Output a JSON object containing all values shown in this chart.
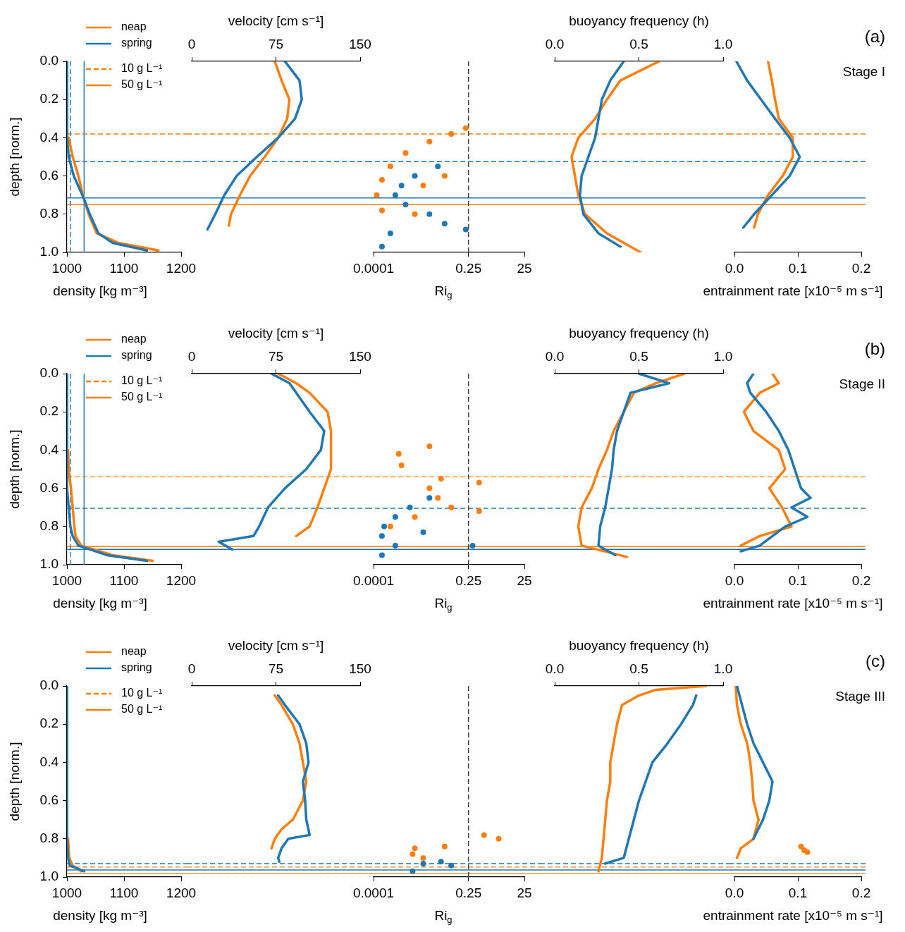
{
  "chart_data": [
    {
      "type": "line",
      "orientation": "horizontal",
      "xlabel": "density [kg m⁻³]",
      "ylabel": "depth [norm.]",
      "xlim": [
        1000,
        1200
      ],
      "xticks": [
        1000,
        1100,
        1200
      ],
      "ylim": [
        1,
        0
      ],
      "yticks": [
        {
          "value": 0,
          "label": "0.0"
        },
        {
          "value": 0.2,
          "label": "0.2"
        },
        {
          "value": 0.4,
          "label": "0.4"
        },
        {
          "value": 0.6,
          "label": "0.6"
        },
        {
          "value": 0.8,
          "label": "0.8"
        },
        {
          "value": 1,
          "label": "1.0"
        }
      ],
      "legend": "top right",
      "series": [
        {
          "name": "neap",
          "color": "#ff7f0e",
          "x": [
            0.4,
            0.5,
            0.6,
            0.7,
            0.8,
            0.9,
            0.95,
            0.99
          ],
          "values": [
            1003,
            1010,
            1020,
            1028,
            1038,
            1052,
            1090,
            1160
          ]
        },
        {
          "name": "spring",
          "color": "#1f77b4",
          "x": [
            0,
            0.1,
            0.2,
            0.3,
            0.4,
            0.5,
            0.6,
            0.7,
            0.8,
            0.9,
            0.95,
            0.99
          ],
          "values": [
            1000,
            1000,
            1000,
            1000,
            1001,
            1003,
            1012,
            1027,
            1040,
            1055,
            1080,
            1140
          ]
        }
      ],
      "ref_lines": [
        {
          "axis": "y",
          "value": 0.38,
          "label": "10 g L⁻¹",
          "color": "#ff7f0e",
          "line_style": "dashed"
        },
        {
          "axis": "y",
          "value": 0.525,
          "color": "#1f77b4",
          "line_style": "dashed"
        },
        {
          "axis": "y",
          "value": 0.715,
          "color": "#1f77b4",
          "line_style": "solid"
        },
        {
          "axis": "y",
          "value": 0.75,
          "label": "50 g L⁻¹",
          "color": "#ff7f0e",
          "line_style": "solid"
        },
        {
          "axis": "x",
          "value": 1006,
          "color": "#1f77b4",
          "line_style": "dashed"
        },
        {
          "axis": "x",
          "value": 1030,
          "color": "#1f77b4",
          "line_style": "solid"
        }
      ]
    },
    {
      "type": "line",
      "orientation": "horizontal",
      "x2label": "velocity [cm s⁻¹]",
      "x2lim": [
        0,
        150
      ],
      "x2ticks": [
        0,
        75,
        150
      ],
      "ylim": [
        1,
        0
      ],
      "tick_labels": "x",
      "series": [
        {
          "axis": "x2",
          "color": "#ff7f0e",
          "x": [
            0,
            0.1,
            0.2,
            0.3,
            0.4,
            0.5,
            0.6,
            0.7,
            0.8,
            0.86
          ],
          "values": [
            74,
            80,
            87,
            85,
            77,
            65,
            52,
            43,
            35,
            33
          ]
        },
        {
          "axis": "x2",
          "color": "#1f77b4",
          "x": [
            0,
            0.1,
            0.2,
            0.3,
            0.4,
            0.5,
            0.6,
            0.7,
            0.8,
            0.88
          ],
          "values": [
            83,
            96,
            98,
            92,
            77,
            58,
            40,
            29,
            21,
            14
          ]
        }
      ],
      "ref_lines": [
        {
          "axis": "y",
          "value": 0.38,
          "color": "#ff7f0e",
          "line_style": "dashed"
        },
        {
          "axis": "y",
          "value": 0.525,
          "color": "#1f77b4",
          "line_style": "dashed"
        },
        {
          "axis": "y",
          "value": 0.715,
          "color": "#1f77b4",
          "line_style": "solid"
        },
        {
          "axis": "y",
          "value": 0.75,
          "color": "#ff7f0e",
          "line_style": "solid"
        }
      ]
    },
    {
      "type": "scatter",
      "orientation": "horizontal",
      "xlabel": "Ri$_{g}$",
      "xlim": [
        0.0001,
        25
      ],
      "xticks": [
        0.0001,
        0.25,
        25
      ],
      "log": "x",
      "ylim": [
        1,
        0
      ],
      "tick_labels": "x",
      "series": [
        {
          "color": "#ff7f0e",
          "x": [
            0.35,
            0.38,
            0.42,
            0.48,
            0.55,
            0.62,
            0.7,
            0.78,
            0.8,
            0.65,
            0.6
          ],
          "values": [
            0.2,
            0.06,
            0.01,
            0.0014,
            0.0004,
            0.0002,
            0.00013,
            0.0002,
            0.003,
            0.006,
            0.035
          ]
        },
        {
          "color": "#1f77b4",
          "x": [
            0.55,
            0.6,
            0.65,
            0.7,
            0.75,
            0.8,
            0.85,
            0.9,
            0.97,
            0.88
          ],
          "values": [
            0.02,
            0.003,
            0.001,
            0.0006,
            0.0014,
            0.01,
            0.035,
            0.0004,
            0.0002,
            0.2
          ]
        }
      ],
      "ref_lines": [
        {
          "axis": "y",
          "value": 0.38,
          "color": "#ff7f0e",
          "line_style": "dashed"
        },
        {
          "axis": "y",
          "value": 0.525,
          "color": "#1f77b4",
          "line_style": "dashed"
        },
        {
          "axis": "y",
          "value": 0.715,
          "color": "#1f77b4",
          "line_style": "solid"
        },
        {
          "axis": "y",
          "value": 0.75,
          "color": "#ff7f0e",
          "line_style": "solid"
        },
        {
          "axis": "x",
          "value": 0.25,
          "color": "#404040",
          "line_style": "dashed"
        }
      ]
    },
    {
      "type": "line",
      "orientation": "horizontal",
      "x2label": "buoyancy frequency (h)",
      "x2lim": [
        0,
        1
      ],
      "x2ticks": [
        {
          "value": 0,
          "label": "0.0"
        },
        {
          "value": 0.5,
          "label": "0.5"
        },
        {
          "value": 1,
          "label": "1.0"
        }
      ],
      "ylim": [
        1,
        0
      ],
      "tick_labels": "x",
      "series": [
        {
          "axis": "x2",
          "color": "#ff7f0e",
          "x": [
            0,
            0.1,
            0.2,
            0.3,
            0.4,
            0.5,
            0.6,
            0.7,
            0.8,
            0.9,
            0.95,
            1
          ],
          "values": [
            0.62,
            0.39,
            0.31,
            0.24,
            0.14,
            0.1,
            0.12,
            0.14,
            0.18,
            0.31,
            0.41,
            0.51
          ]
        },
        {
          "axis": "x2",
          "color": "#1f77b4",
          "x": [
            0,
            0.1,
            0.2,
            0.3,
            0.4,
            0.5,
            0.6,
            0.7,
            0.8,
            0.9,
            0.97
          ],
          "values": [
            0.41,
            0.33,
            0.28,
            0.26,
            0.24,
            0.2,
            0.16,
            0.15,
            0.17,
            0.26,
            0.39
          ]
        }
      ],
      "ref_lines": [
        {
          "axis": "y",
          "value": 0.38,
          "color": "#ff7f0e",
          "line_style": "dashed"
        },
        {
          "axis": "y",
          "value": 0.525,
          "color": "#1f77b4",
          "line_style": "dashed"
        },
        {
          "axis": "y",
          "value": 0.715,
          "color": "#1f77b4",
          "line_style": "solid"
        },
        {
          "axis": "y",
          "value": 0.75,
          "color": "#ff7f0e",
          "line_style": "solid"
        }
      ]
    },
    {
      "type": "line",
      "orientation": "horizontal",
      "xlabel": "entrainment rate [x10⁻⁵ m s⁻¹]",
      "xlim": [
        0,
        0.2
      ],
      "xticks": [
        {
          "value": 0,
          "label": "0.0"
        },
        {
          "value": 0.1,
          "label": "0.1"
        },
        {
          "value": 0.2,
          "label": "0.2"
        }
      ],
      "ylim": [
        1,
        0
      ],
      "tick_labels": "x",
      "annotations": [
        "(a)",
        "Stage I"
      ],
      "series": [
        {
          "color": "#ff7f0e",
          "x": [
            0,
            0.1,
            0.2,
            0.3,
            0.4,
            0.5,
            0.6,
            0.7,
            0.8,
            0.87
          ],
          "values": [
            0.053,
            0.059,
            0.064,
            0.07,
            0.092,
            0.092,
            0.076,
            0.053,
            0.037,
            0.031
          ]
        },
        {
          "color": "#1f77b4",
          "x": [
            0,
            0.1,
            0.2,
            0.3,
            0.4,
            0.5,
            0.6,
            0.7,
            0.8,
            0.87
          ],
          "values": [
            0.003,
            0.02,
            0.042,
            0.064,
            0.087,
            0.103,
            0.087,
            0.059,
            0.031,
            0.014
          ]
        }
      ],
      "ref_lines": [
        {
          "axis": "y",
          "value": 0.38,
          "color": "#ff7f0e",
          "line_style": "dashed"
        },
        {
          "axis": "y",
          "value": 0.525,
          "color": "#1f77b4",
          "line_style": "dashed"
        },
        {
          "axis": "y",
          "value": 0.715,
          "color": "#1f77b4",
          "line_style": "solid"
        },
        {
          "axis": "y",
          "value": 0.75,
          "color": "#ff7f0e",
          "line_style": "solid"
        }
      ]
    },
    {
      "type": "line",
      "orientation": "horizontal",
      "xlabel": "density [kg m⁻³]",
      "ylabel": "depth [norm.]",
      "xlim": [
        1000,
        1200
      ],
      "xticks": [
        1000,
        1100,
        1200
      ],
      "ylim": [
        1,
        0
      ],
      "yticks": [
        {
          "value": 0,
          "label": "0.0"
        },
        {
          "value": 0.2,
          "label": "0.2"
        },
        {
          "value": 0.4,
          "label": "0.4"
        },
        {
          "value": 0.6,
          "label": "0.6"
        },
        {
          "value": 0.8,
          "label": "0.8"
        },
        {
          "value": 1,
          "label": "1.0"
        }
      ],
      "legend": "top right",
      "series": [
        {
          "name": "neap",
          "color": "#ff7f0e",
          "x": [
            0.4,
            0.5,
            0.6,
            0.7,
            0.8,
            0.85,
            0.9,
            0.95,
            0.98
          ],
          "values": [
            1002,
            1003,
            1007,
            1010,
            1013,
            1015,
            1025,
            1080,
            1150
          ]
        },
        {
          "name": "spring",
          "color": "#1f77b4",
          "x": [
            0,
            0.1,
            0.2,
            0.3,
            0.4,
            0.5,
            0.6,
            0.7,
            0.8,
            0.85,
            0.9,
            0.95,
            0.98
          ],
          "values": [
            1000,
            1000,
            1000,
            1000,
            1000,
            1000,
            1001,
            1003,
            1006,
            1010,
            1020,
            1070,
            1140
          ]
        }
      ],
      "ref_lines": [
        {
          "axis": "y",
          "value": 0.54,
          "label": "10 g L⁻¹",
          "color": "#ff7f0e",
          "line_style": "dashed"
        },
        {
          "axis": "y",
          "value": 0.705,
          "color": "#1f77b4",
          "line_style": "dashed"
        },
        {
          "axis": "y",
          "value": 0.905,
          "label": "50 g L⁻¹",
          "color": "#ff7f0e",
          "line_style": "solid"
        },
        {
          "axis": "y",
          "value": 0.92,
          "color": "#1f77b4",
          "line_style": "solid"
        },
        {
          "axis": "x",
          "value": 1006,
          "color": "#1f77b4",
          "line_style": "dashed"
        },
        {
          "axis": "x",
          "value": 1030,
          "color": "#1f77b4",
          "line_style": "solid"
        }
      ]
    },
    {
      "type": "line",
      "orientation": "horizontal",
      "x2label": "velocity [cm s⁻¹]",
      "x2lim": [
        0,
        150
      ],
      "x2ticks": [
        0,
        75,
        150
      ],
      "ylim": [
        1,
        0
      ],
      "tick_labels": "x",
      "series": [
        {
          "axis": "x2",
          "color": "#ff7f0e",
          "x": [
            0,
            0.05,
            0.1,
            0.2,
            0.3,
            0.4,
            0.5,
            0.6,
            0.7,
            0.8,
            0.85
          ],
          "values": [
            77,
            93,
            105,
            121,
            124,
            124,
            124,
            118,
            112,
            105,
            93
          ]
        },
        {
          "axis": "x2",
          "color": "#1f77b4",
          "x": [
            0,
            0.05,
            0.1,
            0.2,
            0.3,
            0.4,
            0.5,
            0.6,
            0.7,
            0.8,
            0.85,
            0.88,
            0.92
          ],
          "values": [
            71,
            87,
            93,
            105,
            118,
            115,
            102,
            83,
            68,
            60,
            55,
            24,
            36
          ]
        }
      ],
      "ref_lines": [
        {
          "axis": "y",
          "value": 0.54,
          "color": "#ff7f0e",
          "line_style": "dashed"
        },
        {
          "axis": "y",
          "value": 0.705,
          "color": "#1f77b4",
          "line_style": "dashed"
        },
        {
          "axis": "y",
          "value": 0.905,
          "color": "#ff7f0e",
          "line_style": "solid"
        },
        {
          "axis": "y",
          "value": 0.92,
          "color": "#1f77b4",
          "line_style": "solid"
        }
      ]
    },
    {
      "type": "scatter",
      "orientation": "horizontal",
      "xlabel": "Ri$_{g}$",
      "xlim": [
        0.0001,
        25
      ],
      "xticks": [
        0.0001,
        0.25,
        25
      ],
      "log": "x",
      "ylim": [
        1,
        0
      ],
      "tick_labels": "x",
      "series": [
        {
          "color": "#ff7f0e",
          "x": [
            0.38,
            0.42,
            0.48,
            0.55,
            0.6,
            0.65,
            0.7,
            0.75,
            0.8,
            0.72,
            0.57
          ],
          "values": [
            0.01,
            0.0008,
            0.001,
            0.026,
            0.01,
            0.02,
            0.06,
            0.003,
            0.0004,
            0.6,
            0.6
          ]
        },
        {
          "color": "#1f77b4",
          "x": [
            0.65,
            0.7,
            0.75,
            0.8,
            0.85,
            0.9,
            0.95,
            0.9,
            0.83
          ],
          "values": [
            0.01,
            0.002,
            0.0006,
            0.00024,
            0.0002,
            0.0006,
            0.0002,
            0.35,
            0.006
          ]
        }
      ],
      "ref_lines": [
        {
          "axis": "y",
          "value": 0.54,
          "color": "#ff7f0e",
          "line_style": "dashed"
        },
        {
          "axis": "y",
          "value": 0.705,
          "color": "#1f77b4",
          "line_style": "dashed"
        },
        {
          "axis": "y",
          "value": 0.905,
          "color": "#ff7f0e",
          "line_style": "solid"
        },
        {
          "axis": "y",
          "value": 0.92,
          "color": "#1f77b4",
          "line_style": "solid"
        },
        {
          "axis": "x",
          "value": 0.25,
          "color": "#404040",
          "line_style": "dashed"
        }
      ]
    },
    {
      "type": "line",
      "orientation": "horizontal",
      "x2label": "buoyancy frequency (h)",
      "x2lim": [
        0,
        1
      ],
      "x2ticks": [
        {
          "value": 0,
          "label": "0.0"
        },
        {
          "value": 0.5,
          "label": "0.5"
        },
        {
          "value": 1,
          "label": "1.0"
        }
      ],
      "ylim": [
        1,
        0
      ],
      "tick_labels": "x",
      "series": [
        {
          "axis": "x2",
          "color": "#ff7f0e",
          "x": [
            0,
            0.05,
            0.1,
            0.2,
            0.3,
            0.4,
            0.5,
            0.6,
            0.7,
            0.8,
            0.9,
            0.96
          ],
          "values": [
            0.77,
            0.6,
            0.47,
            0.41,
            0.35,
            0.31,
            0.26,
            0.22,
            0.16,
            0.14,
            0.16,
            0.43
          ]
        },
        {
          "axis": "x2",
          "color": "#1f77b4",
          "x": [
            0,
            0.05,
            0.1,
            0.2,
            0.3,
            0.4,
            0.5,
            0.6,
            0.7,
            0.8,
            0.9,
            0.95
          ],
          "values": [
            0.5,
            0.68,
            0.45,
            0.41,
            0.37,
            0.35,
            0.34,
            0.32,
            0.3,
            0.27,
            0.26,
            0.36
          ]
        }
      ],
      "ref_lines": [
        {
          "axis": "y",
          "value": 0.54,
          "color": "#ff7f0e",
          "line_style": "dashed"
        },
        {
          "axis": "y",
          "value": 0.705,
          "color": "#1f77b4",
          "line_style": "dashed"
        },
        {
          "axis": "y",
          "value": 0.905,
          "color": "#ff7f0e",
          "line_style": "solid"
        },
        {
          "axis": "y",
          "value": 0.92,
          "color": "#1f77b4",
          "line_style": "solid"
        }
      ]
    },
    {
      "type": "line",
      "orientation": "horizontal",
      "xlabel": "entrainment rate [x10⁻⁵ m s⁻¹]",
      "xlim": [
        0,
        0.2
      ],
      "xticks": [
        {
          "value": 0,
          "label": "0.0"
        },
        {
          "value": 0.1,
          "label": "0.1"
        },
        {
          "value": 0.2,
          "label": "0.2"
        }
      ],
      "ylim": [
        1,
        0
      ],
      "tick_labels": "x",
      "annotations": [
        "(b)",
        "Stage II"
      ],
      "series": [
        {
          "color": "#ff7f0e",
          "x": [
            0,
            0.05,
            0.1,
            0.2,
            0.3,
            0.4,
            0.5,
            0.6,
            0.7,
            0.8,
            0.85,
            0.9
          ],
          "values": [
            0.06,
            0.07,
            0.04,
            0.015,
            0.03,
            0.07,
            0.08,
            0.055,
            0.075,
            0.09,
            0.04,
            0.01
          ]
        },
        {
          "color": "#1f77b4",
          "x": [
            0,
            0.05,
            0.1,
            0.2,
            0.3,
            0.4,
            0.5,
            0.6,
            0.65,
            0.7,
            0.75,
            0.8,
            0.85,
            0.9,
            0.93
          ],
          "values": [
            0.03,
            0.02,
            0.025,
            0.05,
            0.07,
            0.085,
            0.095,
            0.105,
            0.12,
            0.09,
            0.115,
            0.08,
            0.06,
            0.04,
            0.01
          ]
        }
      ],
      "ref_lines": [
        {
          "axis": "y",
          "value": 0.54,
          "color": "#ff7f0e",
          "line_style": "dashed"
        },
        {
          "axis": "y",
          "value": 0.705,
          "color": "#1f77b4",
          "line_style": "dashed"
        },
        {
          "axis": "y",
          "value": 0.905,
          "color": "#ff7f0e",
          "line_style": "solid"
        },
        {
          "axis": "y",
          "value": 0.92,
          "color": "#1f77b4",
          "line_style": "solid"
        }
      ]
    },
    {
      "type": "line",
      "orientation": "horizontal",
      "xlabel": "density [kg m⁻³]",
      "ylabel": "depth [norm.]",
      "xlim": [
        1000,
        1200
      ],
      "xticks": [
        1000,
        1100,
        1200
      ],
      "ylim": [
        1,
        0
      ],
      "yticks": [
        {
          "value": 0,
          "label": "0.0"
        },
        {
          "value": 0.2,
          "label": "0.2"
        },
        {
          "value": 0.4,
          "label": "0.4"
        },
        {
          "value": 0.6,
          "label": "0.6"
        },
        {
          "value": 0.8,
          "label": "0.8"
        },
        {
          "value": 1,
          "label": "1.0"
        }
      ],
      "legend": "top right",
      "series": [
        {
          "name": "neap",
          "color": "#ff7f0e",
          "x": [
            0.8,
            0.9,
            0.94,
            0.97
          ],
          "values": [
            1002,
            1004,
            1010,
            1025
          ]
        },
        {
          "name": "spring",
          "color": "#1f77b4",
          "x": [
            0,
            0.2,
            0.4,
            0.6,
            0.8,
            0.9,
            0.94,
            0.97
          ],
          "values": [
            1000,
            1000,
            1000,
            1000,
            1001,
            1002,
            1005,
            1030
          ]
        }
      ],
      "ref_lines": [
        {
          "axis": "y",
          "value": 0.93,
          "color": "#1f77b4",
          "line_style": "dashed"
        },
        {
          "axis": "y",
          "value": 0.948,
          "label": "10 g L⁻¹",
          "color": "#ff7f0e",
          "line_style": "dashed"
        },
        {
          "axis": "y",
          "value": 0.963,
          "color": "#1f77b4",
          "line_style": "solid"
        },
        {
          "axis": "y",
          "value": 0.982,
          "label": "50 g L⁻¹",
          "color": "#ff7f0e",
          "line_style": "solid"
        }
      ]
    },
    {
      "type": "line",
      "orientation": "horizontal",
      "x2label": "velocity [cm s⁻¹]",
      "x2lim": [
        0,
        150
      ],
      "x2ticks": [
        0,
        75,
        150
      ],
      "ylim": [
        1,
        0
      ],
      "tick_labels": "x",
      "series": [
        {
          "axis": "x2",
          "color": "#ff7f0e",
          "x": [
            0.05,
            0.1,
            0.2,
            0.3,
            0.4,
            0.5,
            0.6,
            0.7,
            0.75,
            0.8,
            0.85
          ],
          "values": [
            74,
            80,
            90,
            96,
            99,
            102,
            99,
            90,
            80,
            74,
            71
          ]
        },
        {
          "axis": "x2",
          "color": "#1f77b4",
          "x": [
            0.05,
            0.1,
            0.2,
            0.3,
            0.4,
            0.5,
            0.6,
            0.7,
            0.78,
            0.8,
            0.85,
            0.9,
            0.92
          ],
          "values": [
            77,
            83,
            96,
            102,
            104,
            99,
            101,
            102,
            105,
            86,
            80,
            77,
            78
          ]
        }
      ],
      "ref_lines": [
        {
          "axis": "y",
          "value": 0.93,
          "color": "#1f77b4",
          "line_style": "dashed"
        },
        {
          "axis": "y",
          "value": 0.948,
          "color": "#ff7f0e",
          "line_style": "dashed"
        },
        {
          "axis": "y",
          "value": 0.963,
          "color": "#1f77b4",
          "line_style": "solid"
        },
        {
          "axis": "y",
          "value": 0.982,
          "color": "#ff7f0e",
          "line_style": "solid"
        }
      ]
    },
    {
      "type": "scatter",
      "orientation": "horizontal",
      "xlabel": "Ri$_{g}$",
      "xlim": [
        0.0001,
        25
      ],
      "xticks": [
        0.0001,
        0.25,
        25
      ],
      "log": "x",
      "ylim": [
        1,
        0
      ],
      "tick_labels": "x",
      "series": [
        {
          "color": "#ff7f0e",
          "x": [
            0.85,
            0.88,
            0.9,
            0.84,
            0.78,
            0.8
          ],
          "values": [
            0.003,
            0.0025,
            0.006,
            0.035,
            0.9,
            3
          ]
        },
        {
          "color": "#1f77b4",
          "x": [
            0.92,
            0.94,
            0.97,
            0.93
          ],
          "values": [
            0.026,
            0.06,
            0.0025,
            0.006
          ]
        }
      ],
      "ref_lines": [
        {
          "axis": "y",
          "value": 0.93,
          "color": "#1f77b4",
          "line_style": "dashed"
        },
        {
          "axis": "y",
          "value": 0.948,
          "color": "#ff7f0e",
          "line_style": "dashed"
        },
        {
          "axis": "y",
          "value": 0.963,
          "color": "#1f77b4",
          "line_style": "solid"
        },
        {
          "axis": "y",
          "value": 0.982,
          "color": "#ff7f0e",
          "line_style": "solid"
        },
        {
          "axis": "x",
          "value": 0.25,
          "color": "#404040",
          "line_style": "dashed"
        }
      ]
    },
    {
      "type": "line",
      "orientation": "horizontal",
      "x2label": "buoyancy frequency (h)",
      "x2lim": [
        0,
        1
      ],
      "x2ticks": [
        {
          "value": 0,
          "label": "0.0"
        },
        {
          "value": 0.5,
          "label": "0.5"
        },
        {
          "value": 1,
          "label": "1.0"
        }
      ],
      "ylim": [
        1,
        0
      ],
      "tick_labels": "x",
      "series": [
        {
          "axis": "x2",
          "color": "#ff7f0e",
          "x": [
            0,
            0.02,
            0.05,
            0.1,
            0.2,
            0.3,
            0.4,
            0.5,
            0.6,
            0.7,
            0.8,
            0.9,
            0.97
          ],
          "values": [
            0.9,
            0.6,
            0.5,
            0.4,
            0.37,
            0.35,
            0.33,
            0.33,
            0.31,
            0.3,
            0.29,
            0.28,
            0.26
          ]
        },
        {
          "axis": "x2",
          "color": "#1f77b4",
          "x": [
            0.05,
            0.1,
            0.2,
            0.3,
            0.4,
            0.5,
            0.6,
            0.7,
            0.8,
            0.9,
            0.93
          ],
          "values": [
            0.84,
            0.82,
            0.75,
            0.67,
            0.58,
            0.54,
            0.5,
            0.47,
            0.44,
            0.41,
            0.3
          ]
        }
      ],
      "ref_lines": [
        {
          "axis": "y",
          "value": 0.93,
          "color": "#1f77b4",
          "line_style": "dashed"
        },
        {
          "axis": "y",
          "value": 0.948,
          "color": "#ff7f0e",
          "line_style": "dashed"
        },
        {
          "axis": "y",
          "value": 0.963,
          "color": "#1f77b4",
          "line_style": "solid"
        },
        {
          "axis": "y",
          "value": 0.982,
          "color": "#ff7f0e",
          "line_style": "solid"
        }
      ]
    },
    {
      "type": "line",
      "orientation": "horizontal",
      "xlabel": "entrainment rate [x10⁻⁵ m s⁻¹]",
      "xlim": [
        0,
        0.2
      ],
      "xticks": [
        {
          "value": 0,
          "label": "0.0"
        },
        {
          "value": 0.1,
          "label": "0.1"
        },
        {
          "value": 0.2,
          "label": "0.2"
        }
      ],
      "ylim": [
        1,
        0
      ],
      "tick_labels": "x",
      "annotations": [
        "(c)",
        "Stage III"
      ],
      "series": [
        {
          "color": "#ff7f0e",
          "x": [
            0,
            0.1,
            0.2,
            0.3,
            0.4,
            0.5,
            0.6,
            0.7,
            0.8,
            0.85,
            0.9
          ],
          "values": [
            0.002,
            0.004,
            0.01,
            0.02,
            0.025,
            0.028,
            0.03,
            0.038,
            0.03,
            0.01,
            0.004
          ]
        },
        {
          "type": "scatter",
          "color": "#ff7f0e",
          "x": [
            0.84,
            0.86,
            0.87
          ],
          "values": [
            0.105,
            0.11,
            0.115
          ]
        },
        {
          "color": "#1f77b4",
          "x": [
            0,
            0.1,
            0.2,
            0.3,
            0.4,
            0.5,
            0.6,
            0.7,
            0.8
          ],
          "values": [
            0.004,
            0.012,
            0.02,
            0.03,
            0.045,
            0.06,
            0.055,
            0.045,
            0.03
          ]
        }
      ],
      "ref_lines": [
        {
          "axis": "y",
          "value": 0.93,
          "color": "#1f77b4",
          "line_style": "dashed"
        },
        {
          "axis": "y",
          "value": 0.948,
          "color": "#ff7f0e",
          "line_style": "dashed"
        },
        {
          "axis": "y",
          "value": 0.963,
          "color": "#1f77b4",
          "line_style": "solid"
        },
        {
          "axis": "y",
          "value": 0.982,
          "color": "#ff7f0e",
          "line_style": "solid"
        }
      ]
    }
  ]
}
